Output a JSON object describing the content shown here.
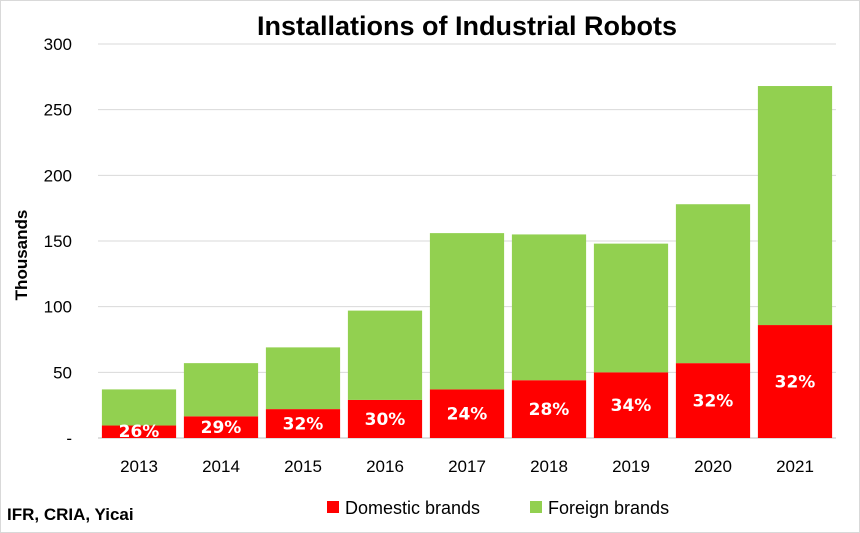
{
  "chart_data": {
    "type": "bar",
    "stacked": true,
    "title": "Installations of Industrial Robots",
    "ylabel": "Thousands",
    "xlabel": "",
    "ylim": [
      0,
      300
    ],
    "yticks": [
      0,
      50,
      100,
      150,
      200,
      250,
      300
    ],
    "ytick_labels": [
      "-",
      "50",
      "100",
      "150",
      "200",
      "250",
      "300"
    ],
    "grid": true,
    "legend_position": "bottom",
    "categories": [
      "2013",
      "2014",
      "2015",
      "2016",
      "2017",
      "2018",
      "2019",
      "2020",
      "2021"
    ],
    "series": [
      {
        "name": "Domestic brands",
        "color": "#ff0000",
        "values": [
          9.5,
          16.5,
          22,
          29,
          37,
          44,
          50,
          57,
          86
        ],
        "data_labels": [
          "26%",
          "29%",
          "32%",
          "30%",
          "24%",
          "28%",
          "34%",
          "32%",
          "32%"
        ]
      },
      {
        "name": "Foreign brands",
        "color": "#92d050",
        "values": [
          27.5,
          40.5,
          47,
          68,
          119,
          111,
          98,
          121,
          182
        ]
      }
    ]
  },
  "source_note": "IFR, CRIA, Yicai"
}
